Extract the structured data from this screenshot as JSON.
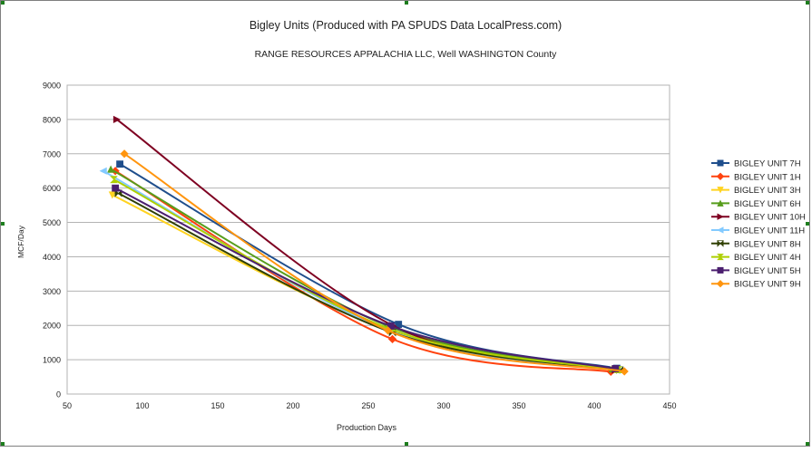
{
  "chart_data": {
    "type": "line",
    "title": "Bigley Units (Produced with PA SPUDS Data LocalPress.com)",
    "subtitle": "RANGE RESOURCES APPALACHIA LLC, Well  WASHINGTON County",
    "xlabel": "Production Days",
    "ylabel": "MCF/Day",
    "xlim": [
      50,
      450
    ],
    "ylim": [
      0,
      9000
    ],
    "xticks": [
      50,
      100,
      150,
      200,
      250,
      300,
      350,
      400,
      450
    ],
    "yticks": [
      0,
      1000,
      2000,
      3000,
      4000,
      5000,
      6000,
      7000,
      8000,
      9000
    ],
    "grid": "horizontal",
    "legend_position": "right",
    "series": [
      {
        "name": "BIGLEY UNIT 7H",
        "color": "#1f4e8c",
        "marker": "square",
        "points": [
          [
            85,
            6700
          ],
          [
            270,
            2030
          ],
          [
            415,
            750
          ]
        ]
      },
      {
        "name": "BIGLEY UNIT 1H",
        "color": "#ff420e",
        "marker": "diamond",
        "points": [
          [
            82,
            6500
          ],
          [
            266,
            1600
          ],
          [
            411,
            650
          ]
        ]
      },
      {
        "name": "BIGLEY UNIT 3H",
        "color": "#ffd320",
        "marker": "triangle-down",
        "points": [
          [
            80,
            5800
          ],
          [
            265,
            1830
          ],
          [
            413,
            700
          ]
        ]
      },
      {
        "name": "BIGLEY UNIT 6H",
        "color": "#579d1c",
        "marker": "triangle-up",
        "points": [
          [
            79,
            6550
          ],
          [
            262,
            2000
          ],
          [
            412,
            730
          ]
        ]
      },
      {
        "name": "BIGLEY UNIT 10H",
        "color": "#7e0021",
        "marker": "triangle-right",
        "points": [
          [
            83,
            8000
          ],
          [
            266,
            2000
          ],
          [
            414,
            700
          ]
        ]
      },
      {
        "name": "BIGLEY UNIT 11H",
        "color": "#83caff",
        "marker": "triangle-left",
        "points": [
          [
            74,
            6500
          ],
          [
            263,
            1860
          ],
          [
            415,
            690
          ]
        ]
      },
      {
        "name": "BIGLEY UNIT 8H",
        "color": "#314004",
        "marker": "bowtie",
        "points": [
          [
            84,
            5850
          ],
          [
            266,
            1790
          ],
          [
            417,
            700
          ]
        ]
      },
      {
        "name": "BIGLEY UNIT 4H",
        "color": "#aecf00",
        "marker": "hourglass",
        "points": [
          [
            81,
            6250
          ],
          [
            264,
            1900
          ],
          [
            416,
            710
          ]
        ]
      },
      {
        "name": "BIGLEY UNIT 5H",
        "color": "#4b1f6f",
        "marker": "square",
        "points": [
          [
            82,
            6000
          ],
          [
            265,
            1980
          ],
          [
            414,
            740
          ]
        ]
      },
      {
        "name": "BIGLEY UNIT 9H",
        "color": "#ff950e",
        "marker": "diamond",
        "points": [
          [
            88,
            7000
          ],
          [
            263,
            1850
          ],
          [
            420,
            660
          ]
        ]
      }
    ]
  }
}
